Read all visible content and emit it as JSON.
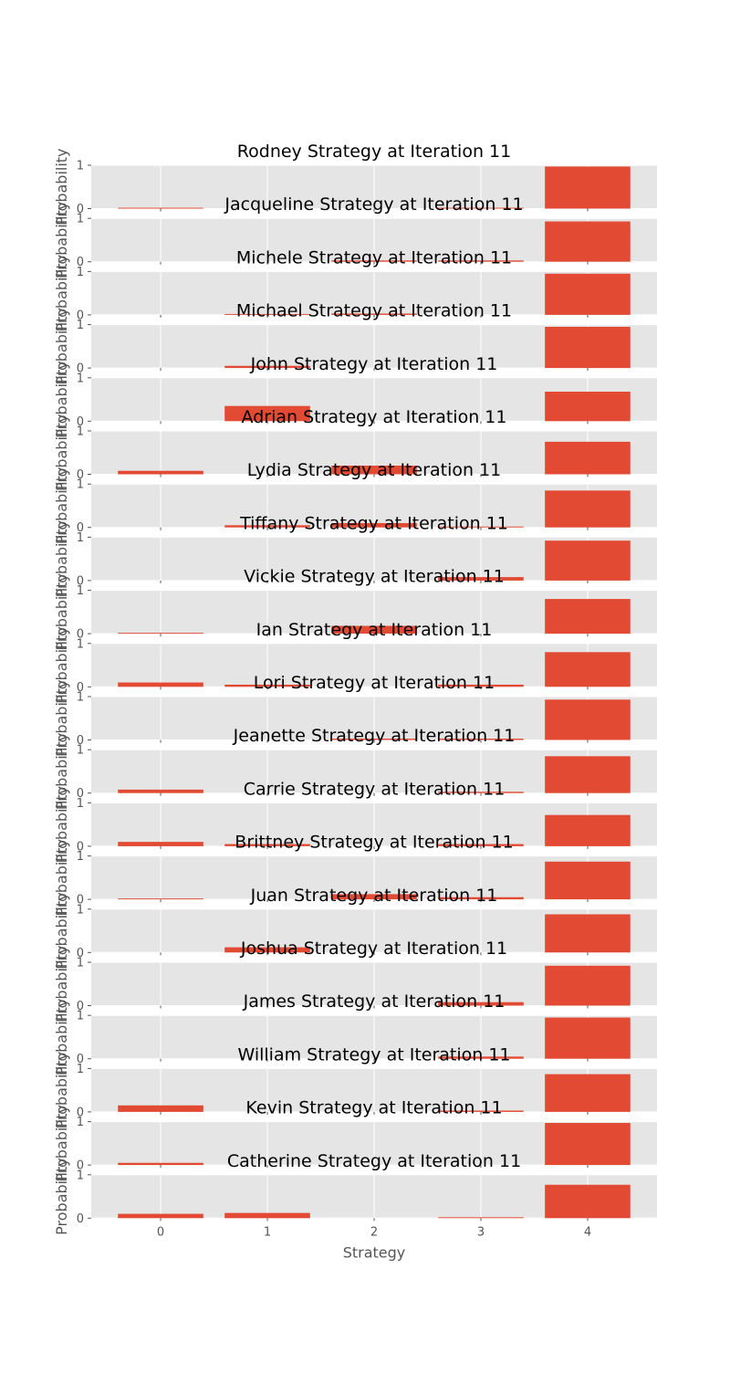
{
  "chart_data": {
    "type": "bar",
    "title_suffix": " Strategy at Iteration 11",
    "xlabel": "Strategy",
    "ylabel": "Probability",
    "x_ticks": [
      "0",
      "1",
      "2",
      "3",
      "4"
    ],
    "y_ticks": [
      "0",
      "1"
    ],
    "ylim": [
      0,
      1
    ],
    "grid": true,
    "colors": {
      "bar": "#E24A33",
      "panel": "#E5E5E5",
      "grid": "#FFFFFF",
      "text": "#555555"
    },
    "panels": [
      {
        "name": "Rodney",
        "values": [
          0.02,
          0.0,
          0.0,
          0.02,
          0.97
        ]
      },
      {
        "name": "Jacqueline",
        "values": [
          0.0,
          0.0,
          0.03,
          0.03,
          0.93
        ]
      },
      {
        "name": "Michele",
        "values": [
          0.0,
          0.02,
          0.03,
          0.0,
          0.95
        ]
      },
      {
        "name": "Michael",
        "values": [
          0.0,
          0.05,
          0.0,
          0.0,
          0.95
        ]
      },
      {
        "name": "John",
        "values": [
          0.0,
          0.35,
          0.0,
          0.0,
          0.68
        ]
      },
      {
        "name": "Adrian",
        "values": [
          0.08,
          0.0,
          0.2,
          0.0,
          0.75
        ]
      },
      {
        "name": "Lydia",
        "values": [
          0.0,
          0.05,
          0.1,
          0.02,
          0.85
        ]
      },
      {
        "name": "Tiffany",
        "values": [
          0.0,
          0.0,
          0.0,
          0.08,
          0.92
        ]
      },
      {
        "name": "Vickie",
        "values": [
          0.02,
          0.0,
          0.18,
          0.0,
          0.8
        ]
      },
      {
        "name": "Ian",
        "values": [
          0.1,
          0.05,
          0.0,
          0.05,
          0.8
        ]
      },
      {
        "name": "Lori",
        "values": [
          0.0,
          0.0,
          0.03,
          0.03,
          0.93
        ]
      },
      {
        "name": "Jeanette",
        "values": [
          0.08,
          0.0,
          0.0,
          0.03,
          0.85
        ]
      },
      {
        "name": "Carrie",
        "values": [
          0.1,
          0.05,
          0.0,
          0.05,
          0.72
        ]
      },
      {
        "name": "Brittney",
        "values": [
          0.02,
          0.0,
          0.12,
          0.05,
          0.87
        ]
      },
      {
        "name": "Juan",
        "values": [
          0.0,
          0.12,
          0.0,
          0.0,
          0.88
        ]
      },
      {
        "name": "Joshua",
        "values": [
          0.0,
          0.0,
          0.0,
          0.08,
          0.92
        ]
      },
      {
        "name": "James",
        "values": [
          0.0,
          0.0,
          0.0,
          0.05,
          0.95
        ]
      },
      {
        "name": "William",
        "values": [
          0.15,
          0.0,
          0.0,
          0.03,
          0.87
        ]
      },
      {
        "name": "Kevin",
        "values": [
          0.05,
          0.0,
          0.0,
          0.0,
          0.97
        ]
      },
      {
        "name": "Catherine",
        "values": [
          0.1,
          0.12,
          0.0,
          0.02,
          0.77
        ]
      }
    ]
  }
}
